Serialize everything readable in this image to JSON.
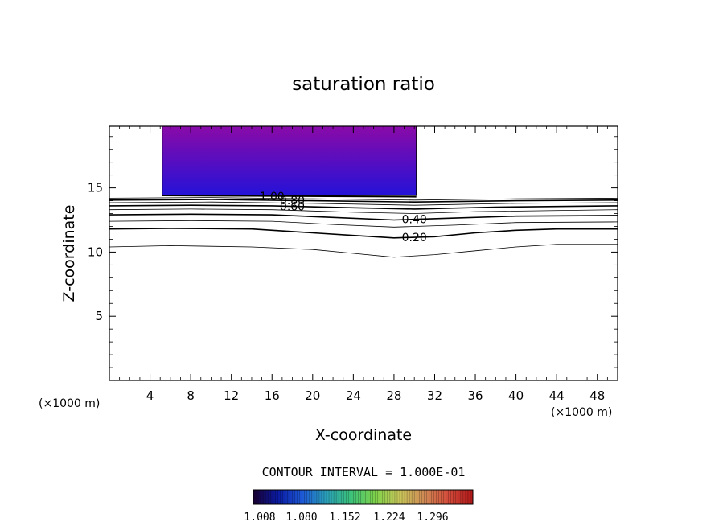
{
  "chart_data": {
    "type": "contour",
    "title": "saturation ratio",
    "xlabel": "X-coordinate",
    "ylabel": "Z-coordinate",
    "x_unit_left": "(×1000 m)",
    "x_unit_right": "(×1000 m)",
    "xlim": [
      0,
      50
    ],
    "ylim": [
      0,
      19.8
    ],
    "xticks": [
      4,
      8,
      12,
      16,
      20,
      24,
      28,
      32,
      36,
      40,
      44,
      48
    ],
    "yticks": [
      5,
      10,
      15
    ],
    "contour_interval_text": "CONTOUR INTERVAL = 1.000E-01",
    "colorbar": {
      "ticks": [
        "1.008",
        "1.080",
        "1.152",
        "1.224",
        "1.296"
      ],
      "colors": [
        "#1a0033",
        "#0a1aa0",
        "#1d58d6",
        "#2aa0b8",
        "#3bc27a",
        "#7fd24a",
        "#c9c65a",
        "#d08a55",
        "#d24a3a",
        "#b01818"
      ]
    },
    "fill_region": {
      "x_range": [
        5.2,
        30.2
      ],
      "z_range": [
        14.4,
        19.8
      ],
      "colors": [
        "#8a0aa8",
        "#2412d8"
      ]
    },
    "contour_levels": [
      {
        "value": 0.1,
        "label": "",
        "points": [
          [
            0,
            10.4
          ],
          [
            6,
            10.5
          ],
          [
            14,
            10.4
          ],
          [
            20,
            10.2
          ],
          [
            24,
            9.9
          ],
          [
            28,
            9.6
          ],
          [
            32,
            9.8
          ],
          [
            36,
            10.1
          ],
          [
            40,
            10.4
          ],
          [
            44,
            10.6
          ],
          [
            50,
            10.6
          ]
        ]
      },
      {
        "value": 0.2,
        "label": "0.20",
        "points": [
          [
            0,
            11.8
          ],
          [
            6,
            11.85
          ],
          [
            14,
            11.8
          ],
          [
            20,
            11.5
          ],
          [
            24,
            11.3
          ],
          [
            28,
            11.1
          ],
          [
            32,
            11.2
          ],
          [
            36,
            11.5
          ],
          [
            40,
            11.7
          ],
          [
            44,
            11.8
          ],
          [
            50,
            11.8
          ]
        ]
      },
      {
        "value": 0.3,
        "label": "",
        "points": [
          [
            0,
            12.4
          ],
          [
            8,
            12.45
          ],
          [
            16,
            12.4
          ],
          [
            22,
            12.15
          ],
          [
            28,
            11.95
          ],
          [
            34,
            12.1
          ],
          [
            40,
            12.3
          ],
          [
            50,
            12.35
          ]
        ]
      },
      {
        "value": 0.4,
        "label": "0.40",
        "points": [
          [
            0,
            12.9
          ],
          [
            8,
            12.95
          ],
          [
            16,
            12.9
          ],
          [
            22,
            12.7
          ],
          [
            28,
            12.5
          ],
          [
            34,
            12.65
          ],
          [
            40,
            12.8
          ],
          [
            50,
            12.85
          ]
        ]
      },
      {
        "value": 0.5,
        "label": "",
        "points": [
          [
            0,
            13.3
          ],
          [
            8,
            13.35
          ],
          [
            16,
            13.3
          ],
          [
            24,
            13.1
          ],
          [
            30,
            13.0
          ],
          [
            36,
            13.15
          ],
          [
            50,
            13.3
          ]
        ]
      },
      {
        "value": 0.6,
        "label": "0.60",
        "points": [
          [
            0,
            13.6
          ],
          [
            8,
            13.65
          ],
          [
            16,
            13.6
          ],
          [
            24,
            13.45
          ],
          [
            30,
            13.35
          ],
          [
            38,
            13.5
          ],
          [
            50,
            13.6
          ]
        ]
      },
      {
        "value": 0.7,
        "label": "",
        "points": [
          [
            0,
            13.85
          ],
          [
            10,
            13.9
          ],
          [
            20,
            13.8
          ],
          [
            30,
            13.65
          ],
          [
            40,
            13.8
          ],
          [
            50,
            13.85
          ]
        ]
      },
      {
        "value": 0.8,
        "label": "0.80",
        "points": [
          [
            0,
            14.05
          ],
          [
            10,
            14.1
          ],
          [
            20,
            14.0
          ],
          [
            30,
            13.9
          ],
          [
            40,
            14.0
          ],
          [
            50,
            14.05
          ]
        ]
      },
      {
        "value": 0.9,
        "label": "",
        "points": [
          [
            0,
            14.2
          ],
          [
            10,
            14.25
          ],
          [
            20,
            14.15
          ],
          [
            30,
            14.05
          ],
          [
            40,
            14.15
          ],
          [
            50,
            14.2
          ]
        ]
      },
      {
        "value": 1.0,
        "label": "1.00",
        "points": [
          [
            5.2,
            14.4
          ],
          [
            30.2,
            14.3
          ]
        ]
      }
    ]
  }
}
